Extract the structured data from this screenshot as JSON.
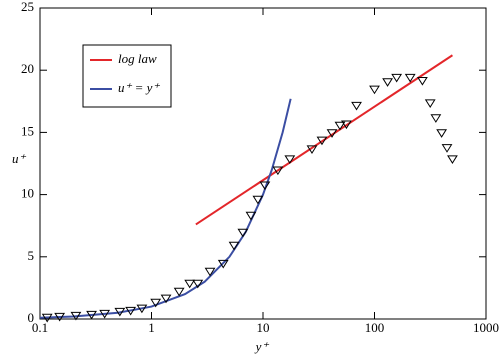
{
  "chart_data": {
    "type": "scatter",
    "log_x": true,
    "xlabel": "y⁺",
    "ylabel": "u⁺",
    "xlim": [
      0.1,
      1000
    ],
    "ylim": [
      0,
      25
    ],
    "xticks": [
      0.1,
      1,
      10,
      100,
      1000
    ],
    "yticks": [
      0,
      5,
      10,
      15,
      20,
      25
    ],
    "legend": "upper left",
    "points": {
      "marker": "triangle-down",
      "color": "#000000",
      "x": [
        0.116,
        0.15,
        0.21,
        0.29,
        0.38,
        0.52,
        0.65,
        0.82,
        1.09,
        1.35,
        1.77,
        2.2,
        2.6,
        3.35,
        4.4,
        5.5,
        6.6,
        7.8,
        9.0,
        10.4,
        13.6,
        17.4,
        27.5,
        33.8,
        41.6,
        49,
        56,
        69,
        100,
        131,
        158,
        209,
        269,
        316,
        355,
        400,
        447,
        500
      ],
      "values": [
        0.16,
        0.24,
        0.32,
        0.4,
        0.48,
        0.64,
        0.72,
        0.9,
        1.37,
        1.7,
        2.25,
        2.9,
        2.9,
        3.86,
        4.5,
        5.95,
        7.0,
        8.36,
        9.65,
        10.8,
        12.0,
        12.9,
        13.7,
        14.4,
        15.0,
        15.6,
        15.7,
        17.2,
        18.5,
        19.1,
        19.45,
        19.45,
        19.2,
        17.4,
        16.2,
        15.0,
        13.8,
        12.9
      ]
    },
    "series": [
      {
        "name": "log law",
        "color": "#e3262a",
        "x": [
          2.5,
          500
        ],
        "values": [
          7.6,
          21.2
        ]
      },
      {
        "name": "u⁺ = y⁺",
        "color": "#3b4ea3",
        "x": [
          0.1,
          0.2,
          0.5,
          1,
          2,
          3,
          5,
          7,
          10,
          12,
          15,
          17.7
        ],
        "values": [
          0.1,
          0.2,
          0.5,
          1,
          2,
          3,
          5,
          7,
          10,
          12,
          15,
          17.7
        ]
      }
    ]
  }
}
